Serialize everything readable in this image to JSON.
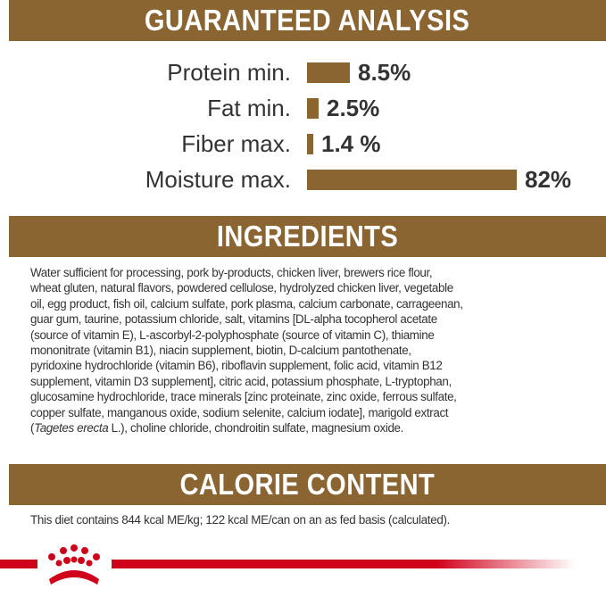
{
  "analysis": {
    "title": "GUARANTEED ANALYSIS",
    "rows": [
      {
        "label": "Protein min.",
        "value": "8.5%"
      },
      {
        "label": "Fat min.",
        "value": "2.5%"
      },
      {
        "label": "Fiber max.",
        "value": "1.4 %"
      },
      {
        "label": "Moisture max.",
        "value": "82%"
      }
    ]
  },
  "ingredients": {
    "title": "INGREDIENTS",
    "lines": [
      "Water sufficient for processing, pork by-products, chicken liver, brewers rice flour,",
      "wheat gluten, natural flavors, powdered cellulose, hydrolyzed chicken liver, vegetable",
      "oil, egg product, fish oil, calcium sulfate, pork plasma, calcium carbonate, carrageenan,",
      "guar gum, taurine, potassium chloride, salt, vitamins [DL-alpha tocopherol acetate",
      "(source of vitamin E), L-ascorbyl-2-polyphosphate (source of vitamin C), thiamine",
      "mononitrate (vitamin B1), niacin supplement, biotin, D-calcium pantothenate,",
      "pyridoxine hydrochloride (vitamin B6), riboflavin supplement, folic acid, vitamin B12",
      "supplement, vitamin D3 supplement], citric acid, potassium phosphate, L-tryptophan,",
      "glucosamine hydrochloride, trace minerals [zinc proteinate, zinc oxide, ferrous sulfate,",
      "copper sulfate, manganous oxide, sodium selenite, calcium iodate], marigold extract"
    ],
    "last_line": {
      "pre": "(",
      "italic": "Tagetes erecta",
      "post": " L.), choline chloride, chondroitin sulfate, magnesium oxide."
    }
  },
  "calorie": {
    "title": "CALORIE CONTENT",
    "text": "This diet contains 844 kcal ME/kg; 122 kcal ME/can on an as fed basis (calculated)."
  },
  "colors": {
    "banner": "#8a6431",
    "brand_red": "#d0021b"
  },
  "logo": "crown-logo"
}
